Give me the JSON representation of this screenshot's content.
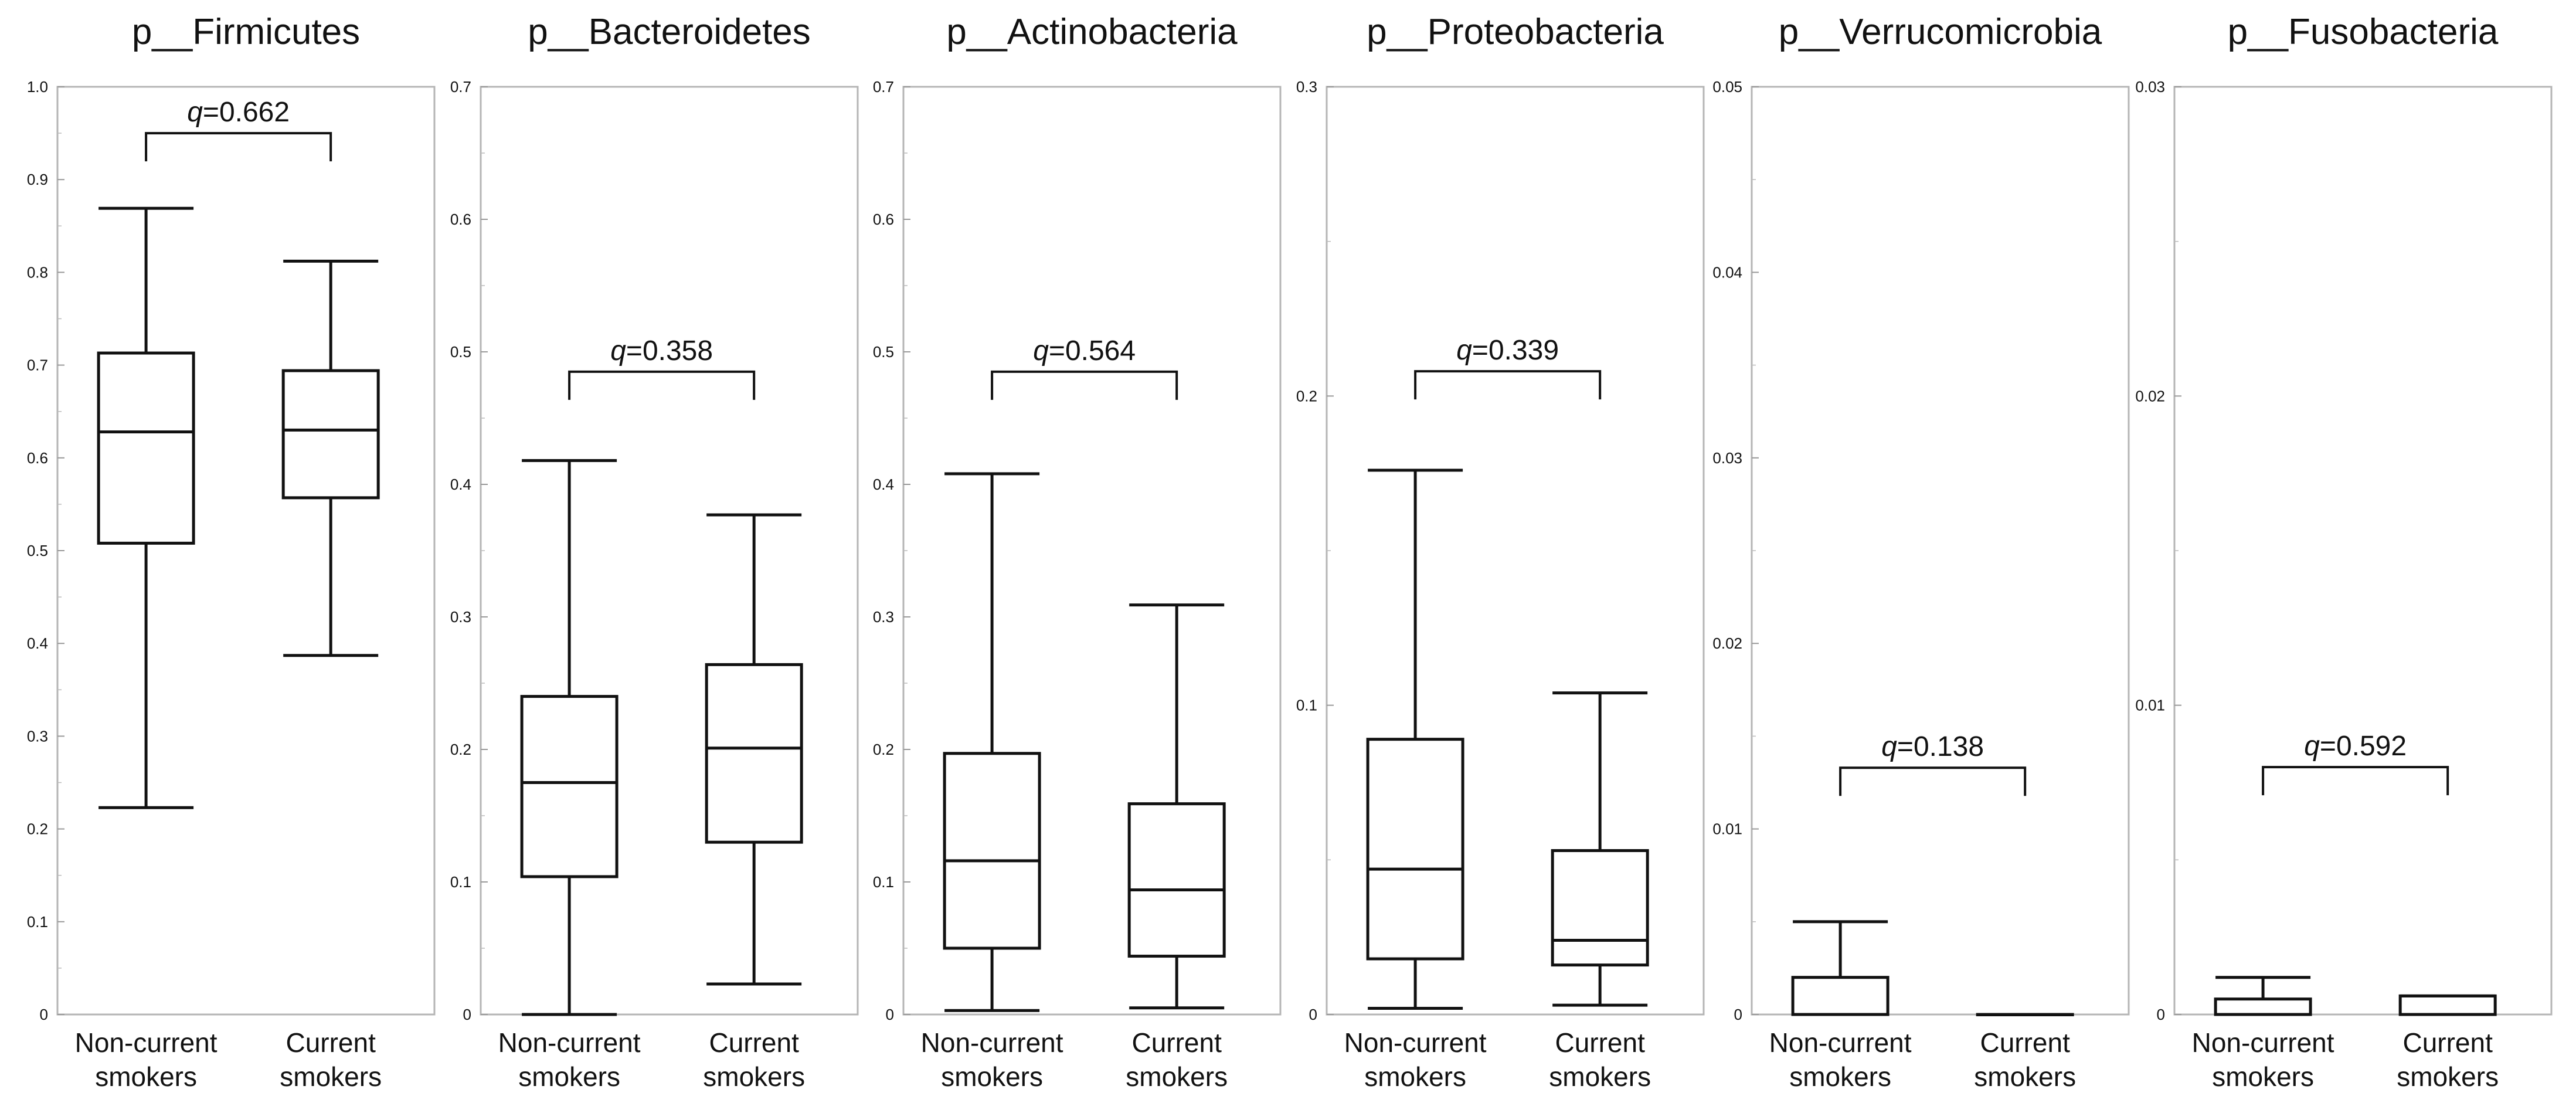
{
  "chart_data": [
    {
      "type": "box",
      "title": "p__Firmicutes",
      "ylim": [
        0,
        1.0
      ],
      "yticks": [
        "0",
        "0.1",
        "0.2",
        "0.3",
        "0.4",
        "0.5",
        "0.6",
        "0.7",
        "0.8",
        "0.9",
        "1.0"
      ],
      "q_label": "=0.662",
      "q_prefix": "q",
      "q_level": 0.95,
      "groups": [
        {
          "label_line1": "Non-current",
          "label_line2": "smokers",
          "min": 0.223,
          "q1": 0.508,
          "median": 0.628,
          "q3": 0.713,
          "max": 0.869
        },
        {
          "label_line1": "Current",
          "label_line2": "smokers",
          "min": 0.387,
          "q1": 0.557,
          "median": 0.63,
          "q3": 0.694,
          "max": 0.812
        }
      ]
    },
    {
      "type": "box",
      "title": "p__Bacteroidetes",
      "ylim": [
        0,
        0.7
      ],
      "yticks": [
        "0",
        "0.1",
        "0.2",
        "0.3",
        "0.4",
        "0.5",
        "0.6",
        "0.7"
      ],
      "q_label": "=0.358",
      "q_prefix": "q",
      "q_level": 0.485,
      "groups": [
        {
          "label_line1": "Non-current",
          "label_line2": "smokers",
          "min": 0.0,
          "q1": 0.104,
          "median": 0.175,
          "q3": 0.24,
          "max": 0.418
        },
        {
          "label_line1": "Current",
          "label_line2": "smokers",
          "min": 0.023,
          "q1": 0.13,
          "median": 0.201,
          "q3": 0.264,
          "max": 0.377
        }
      ]
    },
    {
      "type": "box",
      "title": "p__Actinobacteria",
      "ylim": [
        0,
        0.7
      ],
      "yticks": [
        "0",
        "0.1",
        "0.2",
        "0.3",
        "0.4",
        "0.5",
        "0.6",
        "0.7"
      ],
      "q_label": "=0.564",
      "q_prefix": "q",
      "q_level": 0.485,
      "groups": [
        {
          "label_line1": "Non-current",
          "label_line2": "smokers",
          "min": 0.003,
          "q1": 0.05,
          "median": 0.116,
          "q3": 0.197,
          "max": 0.408
        },
        {
          "label_line1": "Current",
          "label_line2": "smokers",
          "min": 0.005,
          "q1": 0.044,
          "median": 0.094,
          "q3": 0.159,
          "max": 0.309
        }
      ]
    },
    {
      "type": "box",
      "title": "p__Proteobacteria",
      "ylim": [
        0,
        0.3
      ],
      "yticks": [
        "0",
        "0.1",
        "0.2",
        "0.3"
      ],
      "q_label": "=0.339",
      "q_prefix": "q",
      "q_level": 0.208,
      "groups": [
        {
          "label_line1": "Non-current",
          "label_line2": "smokers",
          "min": 0.002,
          "q1": 0.018,
          "median": 0.047,
          "q3": 0.089,
          "max": 0.176
        },
        {
          "label_line1": "Current",
          "label_line2": "smokers",
          "min": 0.003,
          "q1": 0.016,
          "median": 0.024,
          "q3": 0.053,
          "max": 0.104
        }
      ]
    },
    {
      "type": "box",
      "title": "p__Verrucomicrobia",
      "ylim": [
        0,
        0.05
      ],
      "yticks": [
        "0",
        "0.01",
        "0.02",
        "0.03",
        "0.04",
        "0.05"
      ],
      "q_label": "=0.138",
      "q_prefix": "q",
      "q_level": 0.0133,
      "groups": [
        {
          "label_line1": "Non-current",
          "label_line2": "smokers",
          "min": 0.0,
          "q1": 0.0,
          "median": 0.0,
          "q3": 0.002,
          "max": 0.005
        },
        {
          "label_line1": "Current",
          "label_line2": "smokers",
          "min": 0.0,
          "q1": 0.0,
          "median": 0.0,
          "q3": 0.0,
          "max": 0.0
        }
      ]
    },
    {
      "type": "box",
      "title": "p__Fusobacteria",
      "ylim": [
        0,
        0.03
      ],
      "yticks": [
        "0",
        "0.01",
        "0.02",
        "0.03"
      ],
      "q_label": "=0.592",
      "q_prefix": "q",
      "q_level": 0.008,
      "groups": [
        {
          "label_line1": "Non-current",
          "label_line2": "smokers",
          "min": 0.0,
          "q1": 0.0,
          "median": 0.0,
          "q3": 0.0005,
          "max": 0.0012
        },
        {
          "label_line1": "Current",
          "label_line2": "smokers",
          "min": 0.0,
          "q1": 0.0,
          "median": 0.0,
          "q3": 0.0006,
          "max": 0.0006
        }
      ]
    }
  ]
}
